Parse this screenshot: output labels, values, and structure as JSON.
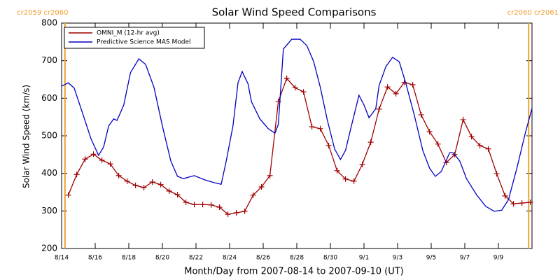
{
  "chart_data": {
    "type": "line",
    "title": "Solar Wind Speed Comparisons",
    "xlabel": "Month/Day from 2007-08-14 to 2007-09-10 (UT)",
    "ylabel": "Solar Wind Speed (km/s)",
    "xlim": [
      0,
      28
    ],
    "ylim": [
      200,
      800
    ],
    "xticks": [
      {
        "value": 0,
        "label": "8/14"
      },
      {
        "value": 2,
        "label": "8/16"
      },
      {
        "value": 4,
        "label": "8/18"
      },
      {
        "value": 6,
        "label": "8/20"
      },
      {
        "value": 8,
        "label": "8/22"
      },
      {
        "value": 10,
        "label": "8/24"
      },
      {
        "value": 12,
        "label": "8/26"
      },
      {
        "value": 14,
        "label": "8/28"
      },
      {
        "value": 16,
        "label": "8/30"
      },
      {
        "value": 18,
        "label": "9/1"
      },
      {
        "value": 20,
        "label": "9/3"
      },
      {
        "value": 22,
        "label": "9/5"
      },
      {
        "value": 24,
        "label": "9/7"
      },
      {
        "value": 26,
        "label": "9/9"
      }
    ],
    "yticks": [
      200,
      300,
      400,
      500,
      600,
      700,
      800
    ],
    "annotation_color": "#f0a030",
    "annotations": [
      {
        "text": "cr2059 cr2060",
        "x": 0.2
      },
      {
        "text": "cr2060 cr2061",
        "x": 27.8
      }
    ],
    "legend": "upper left",
    "series": [
      {
        "name": "OMNI_M (12-hr avg)",
        "color": "#a00000",
        "markers": true,
        "x": [
          0.4,
          0.9,
          1.4,
          1.9,
          2.4,
          2.9,
          3.4,
          3.9,
          4.4,
          4.9,
          5.4,
          5.9,
          6.4,
          6.9,
          7.4,
          7.9,
          8.4,
          8.9,
          9.4,
          9.9,
          10.4,
          10.9,
          11.4,
          11.9,
          12.4,
          12.9,
          13.4,
          13.9,
          14.4,
          14.9,
          15.4,
          15.9,
          16.4,
          16.9,
          17.4,
          17.9,
          18.4,
          18.9,
          19.4,
          19.9,
          20.4,
          20.9,
          21.4,
          21.9,
          22.4,
          22.9,
          23.4,
          23.9,
          24.4,
          24.9,
          25.4,
          25.9,
          26.4,
          26.9,
          27.4,
          27.9
        ],
        "values": [
          342,
          397,
          438,
          451,
          435,
          425,
          394,
          379,
          368,
          362,
          377,
          370,
          353,
          343,
          323,
          317,
          317,
          316,
          310,
          291,
          295,
          299,
          342,
          364,
          394,
          591,
          653,
          628,
          617,
          524,
          519,
          474,
          407,
          385,
          379,
          424,
          483,
          571,
          630,
          612,
          642,
          636,
          556,
          511,
          478,
          429,
          450,
          543,
          498,
          474,
          465,
          399,
          340,
          319,
          321,
          323
        ]
      },
      {
        "name": "Predictive Science MAS Model",
        "color": "#0000c0",
        "markers": false,
        "x": [
          0,
          0.4,
          0.75,
          1.25,
          1.75,
          2.2,
          2.5,
          2.8,
          3.1,
          3.3,
          3.7,
          4.1,
          4.6,
          5.0,
          5.5,
          6.0,
          6.5,
          6.9,
          7.25,
          7.9,
          8.5,
          9.1,
          9.5,
          9.8,
          10.2,
          10.5,
          10.75,
          11.1,
          11.3,
          11.8,
          12.3,
          12.7,
          12.9,
          13.2,
          13.7,
          14.2,
          14.6,
          15.0,
          15.4,
          15.8,
          16.25,
          16.6,
          16.9,
          17.2,
          17.7,
          18.0,
          18.3,
          18.7,
          18.9,
          19.3,
          19.7,
          20.1,
          20.5,
          21.0,
          21.5,
          21.9,
          22.25,
          22.6,
          23.1,
          23.3,
          23.7,
          24.1,
          24.7,
          25.25,
          25.75,
          26.2,
          26.6,
          27.1,
          27.6,
          28.0
        ],
        "values": [
          632,
          641,
          627,
          560,
          492,
          448,
          470,
          526,
          545,
          541,
          582,
          668,
          705,
          690,
          629,
          526,
          433,
          392,
          386,
          394,
          383,
          375,
          371,
          433,
          526,
          641,
          671,
          638,
          591,
          545,
          519,
          507,
          530,
          731,
          757,
          757,
          740,
          698,
          629,
          545,
          465,
          437,
          461,
          517,
          608,
          582,
          548,
          572,
          634,
          684,
          709,
          697,
          638,
          554,
          461,
          414,
          392,
          405,
          455,
          455,
          433,
          386,
          343,
          312,
          299,
          302,
          330,
          414,
          507,
          573
        ]
      }
    ]
  }
}
